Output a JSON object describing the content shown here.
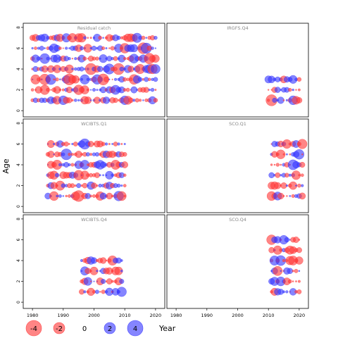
{
  "chart_data": {
    "type": "scatter",
    "xlabel": "Year",
    "ylabel": "Age",
    "xlim": [
      1977,
      2023
    ],
    "ylim": [
      -0.6,
      8.4
    ],
    "x_ticks": [
      1980,
      1990,
      2000,
      2010,
      2020
    ],
    "y_ticks": [
      0,
      2,
      4,
      6,
      8
    ],
    "colors": {
      "positive": "#3333ff",
      "negative": "#ff3333"
    },
    "legend": {
      "placement": "bottom",
      "values": [
        -4,
        -2,
        0,
        2,
        4
      ],
      "labels": [
        "-4",
        "-2",
        "0",
        "2",
        "4"
      ],
      "year_label": "Year"
    },
    "panels": [
      {
        "title": "Residual catch",
        "years": [
          1980,
          2020
        ],
        "ages": [
          1,
          2,
          3,
          4,
          5,
          6,
          7
        ],
        "seed": 3
      },
      {
        "title": "IRGFS.Q4",
        "years": [
          2010,
          2020
        ],
        "ages": [
          1,
          2,
          3
        ],
        "seed": 7
      },
      {
        "title": "WCIBTS.Q1",
        "years": [
          1985,
          2010
        ],
        "ages": [
          1,
          2,
          3,
          4,
          5,
          6
        ],
        "seed": 11
      },
      {
        "title": "SCO.Q1",
        "years": [
          2011,
          2021
        ],
        "ages": [
          1,
          2,
          3,
          4,
          5,
          6
        ],
        "seed": 19
      },
      {
        "title": "WCIBTS.Q4",
        "years": [
          1996,
          2009
        ],
        "ages": [
          1,
          2,
          3,
          4
        ],
        "seed": 23
      },
      {
        "title": "SCO.Q4",
        "years": [
          2011,
          2020
        ],
        "ages": [
          1,
          2,
          3,
          4,
          5,
          6
        ],
        "seed": 29
      }
    ]
  }
}
